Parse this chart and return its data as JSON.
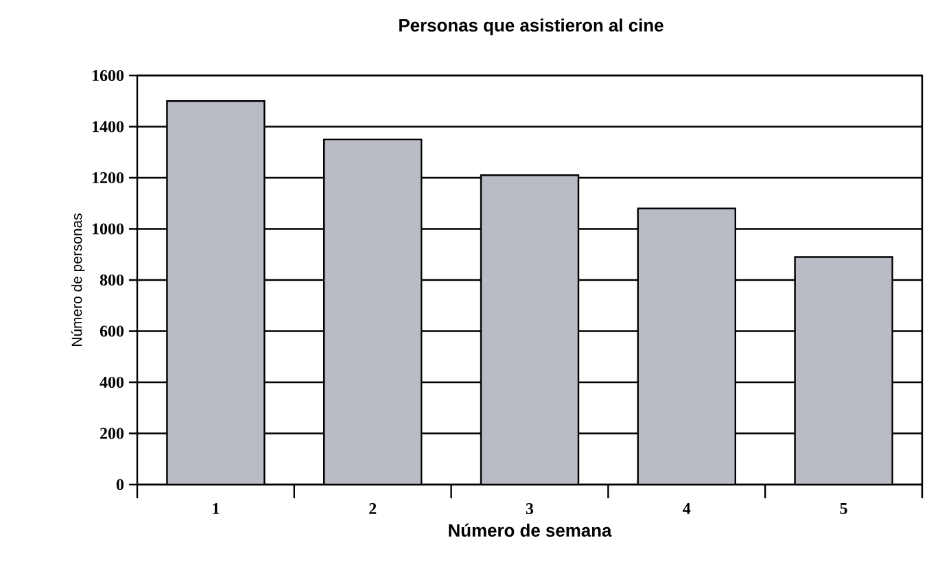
{
  "chart_data": {
    "type": "bar",
    "title": "Personas que asistieron al cine",
    "xlabel": "Número de semana",
    "ylabel": "Número de personas",
    "categories": [
      "1",
      "2",
      "3",
      "4",
      "5"
    ],
    "values": [
      1500,
      1350,
      1210,
      1080,
      890
    ],
    "color": "#b9bcc4",
    "ylim": [
      0,
      1600
    ],
    "yticks": [
      0,
      200,
      400,
      600,
      800,
      1000,
      1200,
      1400,
      1600
    ],
    "grid": "y"
  }
}
